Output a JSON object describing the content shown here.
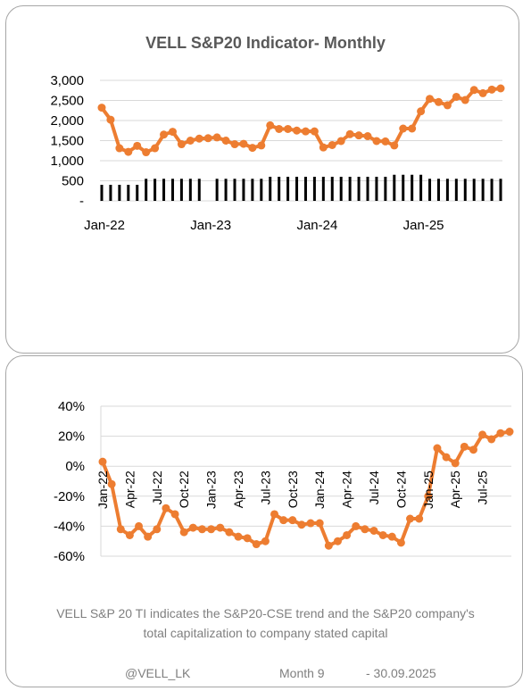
{
  "chart_data": [
    {
      "type": "line",
      "title": "VELL S&P20 Indicator- Monthly",
      "ylim": [
        0,
        3000
      ],
      "y_tick_labels": [
        "-",
        "500",
        "1,000",
        "1,500",
        "2,000",
        "2,500",
        "3,000"
      ],
      "x_tick_labels": [
        "Jan-22",
        "Jan-23",
        "Jan-24",
        "Jan-25"
      ],
      "grid": true,
      "series": [
        {
          "values": [
            2320,
            2020,
            1310,
            1220,
            1370,
            1210,
            1310,
            1650,
            1720,
            1410,
            1500,
            1550,
            1560,
            1580,
            1500,
            1410,
            1420,
            1320,
            1380,
            1880,
            1790,
            1790,
            1750,
            1730,
            1730,
            1330,
            1390,
            1490,
            1660,
            1630,
            1610,
            1490,
            1480,
            1380,
            1800,
            1800,
            2230,
            2540,
            2460,
            2380,
            2590,
            2510,
            2760,
            2680,
            2770,
            2800
          ]
        },
        {
          "values": [
            400,
            400,
            400,
            400,
            400,
            550,
            550,
            550,
            550,
            550,
            550,
            550,
            0,
            550,
            550,
            550,
            550,
            550,
            550,
            600,
            600,
            600,
            600,
            600,
            600,
            600,
            600,
            600,
            600,
            600,
            600,
            600,
            600,
            650,
            650,
            650,
            650,
            550,
            550,
            550,
            550,
            550,
            550,
            550,
            550,
            550
          ]
        }
      ],
      "colors": {
        "line": "#ed7d31",
        "bars": "#000000"
      }
    },
    {
      "type": "line",
      "title": "",
      "ylim": [
        -60,
        40
      ],
      "y_tick_labels": [
        "-60%",
        "-40%",
        "-20%",
        "0%",
        "20%",
        "40%"
      ],
      "x_tick_labels": [
        "Jan-22",
        "Apr-22",
        "Jul-22",
        "Oct-22",
        "Jan-23",
        "Apr-23",
        "Jul-23",
        "Oct-23",
        "Jan-24",
        "Apr-24",
        "Jul-24",
        "Oct-24",
        "Jan-25",
        "Apr-25",
        "Jul-25"
      ],
      "grid": true,
      "series": [
        {
          "values": [
            3,
            -12,
            -42,
            -46,
            -40,
            -47,
            -42,
            -28,
            -32,
            -44,
            -41,
            -42,
            -42,
            -41,
            -44,
            -47,
            -48,
            -52,
            -50,
            -32,
            -36,
            -36,
            -39,
            -38,
            -38,
            -53,
            -50,
            -46,
            -40,
            -42,
            -43,
            -46,
            -47,
            -51,
            -35,
            -35,
            -20,
            12,
            6,
            2,
            13,
            11,
            21,
            18,
            22,
            23
          ]
        }
      ],
      "colors": {
        "line": "#ed7d31"
      }
    }
  ],
  "note": "VELL S&P 20 TI indicates the S&P20-CSE trend and the S&P20 company's total capitalization to company stated capital",
  "footer": {
    "handle": "@VELL_LK",
    "month": "Month 9",
    "date": "- 30.09.2025"
  }
}
